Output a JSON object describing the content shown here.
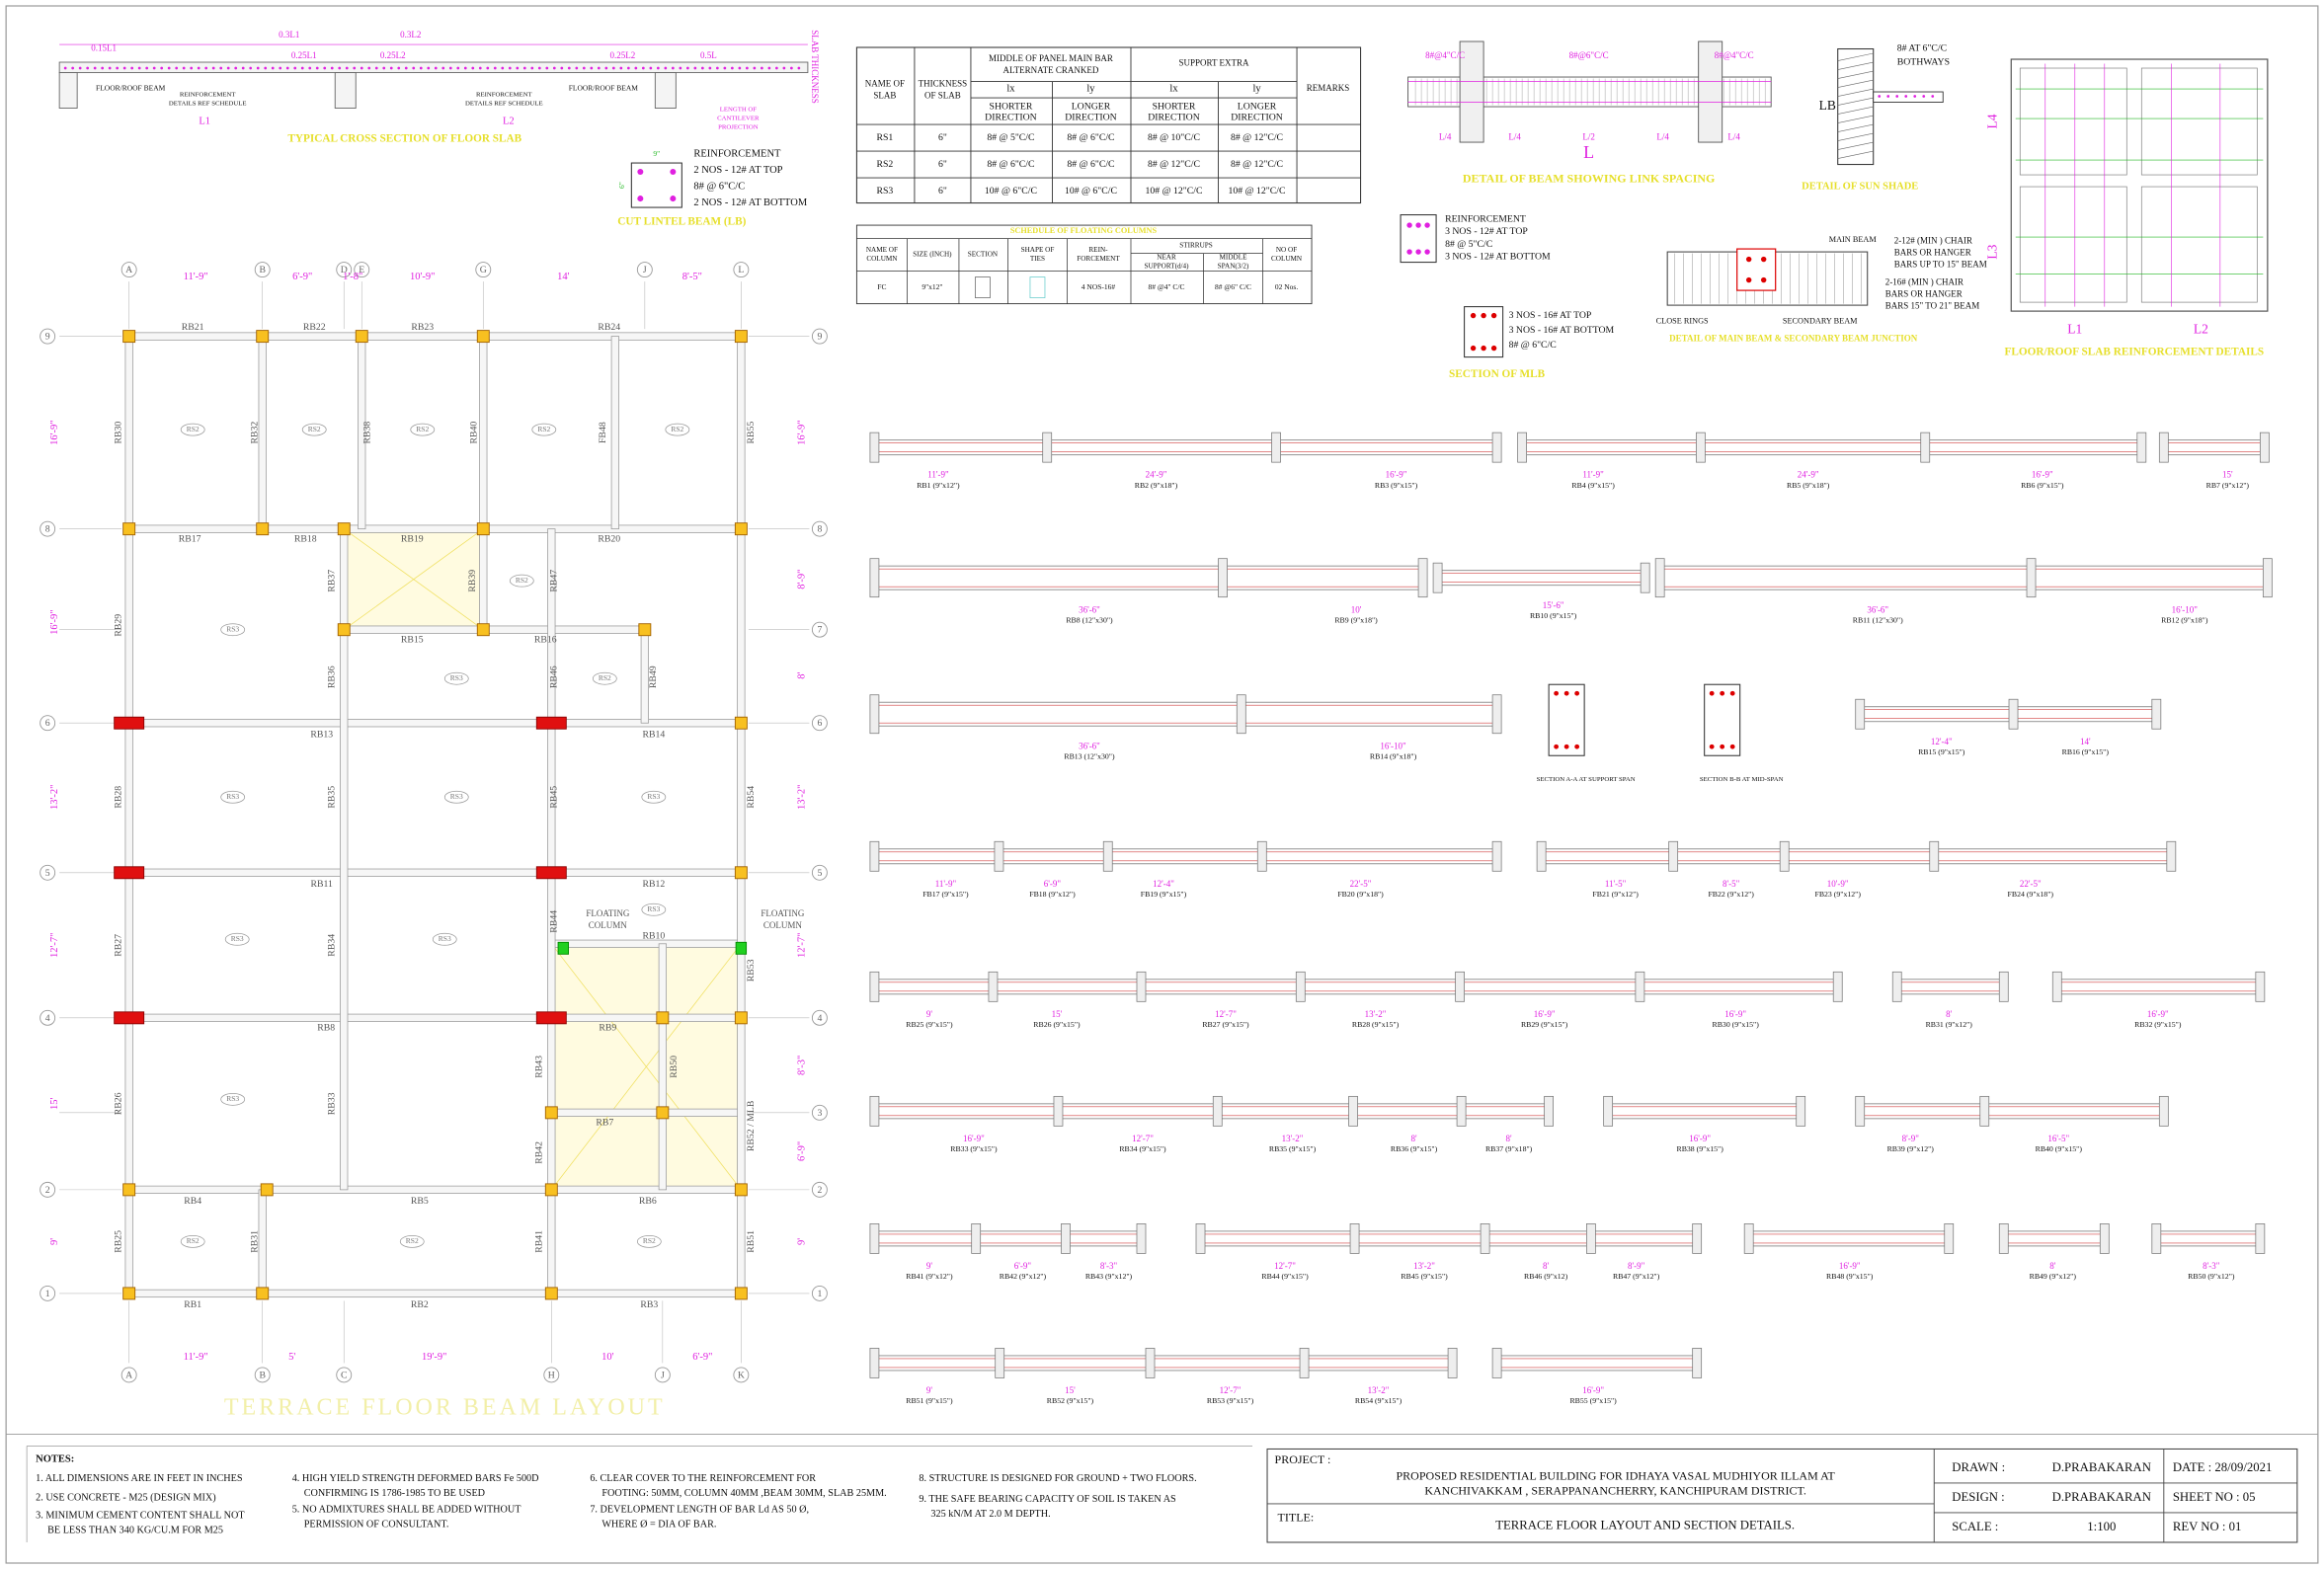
{
  "slab_section": {
    "title": "TYPICAL CROSS SECTION OF FLOOR SLAB",
    "labels": [
      "0.15L1",
      "0.3L1",
      "0.3L2",
      "0.25L1",
      "0.25L2",
      "0.25L2",
      "0.5L",
      "SLAB THICKNESS",
      "FLOOR/ROOF BEAM",
      "FLOOR/ROOF BEAM",
      "L1",
      "L2"
    ],
    "notes": [
      [
        "REINFORCEMENT",
        "DETAILS REF SCHEDULE"
      ],
      [
        "REINFORCEMENT",
        "DETAILS REF SCHEDULE"
      ],
      [
        "LENGTH OF",
        "CANTILEVER",
        "PROJECTION"
      ]
    ]
  },
  "lintel": {
    "title": "CUT LINTEL BEAM (LB)",
    "lines": [
      "REINFORCEMENT",
      "2 NOS - 12#  AT TOP",
      "8# @ 6\"C/C",
      "2 NOS - 12#  AT BOTTOM"
    ],
    "dims": [
      "9\"",
      "6\""
    ]
  },
  "slab_schedule": {
    "headers": [
      [
        "NAME OF",
        "SLAB"
      ],
      [
        "THICKNESS",
        "OF SLAB"
      ],
      [
        "MIDDLE OF PANEL MAIN BAR",
        "ALTERNATE CRANKED"
      ],
      [
        "SUPPORT EXTRA"
      ],
      [
        "REMARKS"
      ]
    ],
    "sub_headers": [
      "lx",
      "ly",
      "lx",
      "ly"
    ],
    "directions": [
      [
        "SHORTER",
        "DIRECTION"
      ],
      [
        "LONGER",
        "DIRECTION"
      ],
      [
        "SHORTER",
        "DIRECTION"
      ],
      [
        "LONGER",
        "DIRECTION"
      ]
    ],
    "rows": [
      [
        "RS1",
        "6\"",
        "8# @ 5\"C/C",
        "8# @ 6\"C/C",
        "8# @ 10\"C/C",
        "8# @ 12\"C/C"
      ],
      [
        "RS2",
        "6\"",
        "8# @ 6\"C/C",
        "8# @ 6\"C/C",
        "8# @ 12\"C/C",
        "8# @ 12\"C/C"
      ],
      [
        "RS3",
        "6\"",
        "10# @ 6\"C/C",
        "10# @ 6\"C/C",
        "10# @ 12\"C/C",
        "10# @ 12\"C/C"
      ]
    ]
  },
  "column_schedule": {
    "title": "SCHEDULE OF FLOATING COLUMNS",
    "headers": [
      [
        "NAME OF",
        "COLUMN"
      ],
      [
        "SIZE (INCH)"
      ],
      [
        "SECTION"
      ],
      [
        "SHAPE OF",
        "TIES"
      ],
      [
        "REIN-",
        "FORCEMENT"
      ],
      [
        "STIRRUPS"
      ],
      [
        "NEAR",
        "SUPPORT(d/4)"
      ],
      [
        "MIDDLE",
        "SPAN(3/2)"
      ],
      [
        "NO OF",
        "COLUMN"
      ]
    ],
    "row": [
      "FC",
      "9\"x12\"",
      "4 NOS-16#",
      "8# @4\" C/C",
      "8# @6\" C/C",
      "02 Nos."
    ]
  },
  "link_detail": {
    "title": "DETAIL OF BEAM SHOWING LINK SPACING",
    "labels": [
      "8#@4\"C/C",
      "8#@6\"C/C",
      "8#@4\"C/C",
      "L/4",
      "L/4",
      "L/2",
      "L/4",
      "L/4",
      "L"
    ]
  },
  "sun_shade": {
    "title": "DETAIL OF SUN SHADE",
    "lines": [
      "8# AT 6\"C/C",
      "BOTHWAYS"
    ],
    "label": "LB"
  },
  "mlb": {
    "lines": [
      "REINFORCEMENT",
      "3 NOS - 12#  AT TOP",
      "8# @ 5\"C/C",
      "3 NOS - 12#  AT BOTTOM"
    ],
    "lines2": [
      "3 NOS - 16#  AT TOP",
      "3 NOS - 16#  AT BOTTOM",
      "8# @ 6\"C/C"
    ],
    "title": "SECTION OF MLB"
  },
  "junction": {
    "title": "DETAIL OF MAIN BEAM & SECONDARY BEAM JUNCTION",
    "labels": [
      "MAIN BEAM",
      "CLOSE RINGS",
      "SECONDARY BEAM"
    ],
    "chair1": [
      "2-12# (MIN ) CHAIR",
      "BARS OR HANGER",
      "BARS UP TO 15\" BEAM"
    ],
    "chair2": [
      "2-16# (MIN ) CHAIR",
      "BARS OR HANGER",
      "BARS  15\" TO 21\"  BEAM"
    ]
  },
  "slab_detail": {
    "title": "FLOOR/ROOF SLAB REINFORCEMENT DETAILS",
    "labels": [
      "L1",
      "L2",
      "L3",
      "L4"
    ]
  },
  "beam_layout": {
    "title": "TERRACE  FLOOR  BEAM  LAYOUT",
    "grid_top": [
      "A",
      "B",
      "D",
      "E",
      "G",
      "J",
      "L"
    ],
    "grid_bottom": [
      "A",
      "B",
      "C",
      "H",
      "J",
      "K"
    ],
    "grid_rows": [
      "9",
      "8",
      "7",
      "6",
      "5",
      "4",
      "3",
      "2",
      "1"
    ],
    "dims_top": [
      "11'-9\"",
      "6'-9\"",
      "1'-8\"",
      "10'-9\"",
      "14'",
      "8'-5\""
    ],
    "dims_bottom": [
      "11'-9\"",
      "5'",
      "19'-9\"",
      "10'",
      "6'-9\""
    ],
    "dims_left": [
      "16'-9\"",
      "16'-9\"",
      "13'-2\"",
      "12'-7\"",
      "15'",
      "9'"
    ],
    "dims_right": [
      "16'-9\"",
      "8'-9\"",
      "8'",
      "13'-2\"",
      "12'-7\"",
      "8'-3\"",
      "6'-9\"",
      "9'"
    ],
    "beams_h": [
      "RB21",
      "RB22",
      "RB23",
      "RB24",
      "RB17",
      "RB18",
      "RB19",
      "RB20",
      "RB15",
      "RB16",
      "RB13",
      "RB14",
      "RB11",
      "RB12",
      "RB10",
      "RB8",
      "RB9",
      "RB7",
      "RB4",
      "RB5",
      "RB6",
      "RB1",
      "RB2",
      "RB3"
    ],
    "beams_v": [
      "RB30",
      "RB32",
      "RB38",
      "RB40",
      "FB48",
      "RB55",
      "RB29",
      "RB37",
      "RB39",
      "RB47",
      "RB36",
      "RB46",
      "RB49",
      "RB28",
      "RB35",
      "RB45",
      "RB54",
      "RB27",
      "RB34",
      "RB44",
      "RB53",
      "RB26",
      "RB33",
      "RB43",
      "RB50",
      "RB52 / MLB",
      "RB42",
      "RB25",
      "RB31",
      "RB41",
      "RB51"
    ],
    "slabs": [
      "RS2",
      "RS2",
      "RS2",
      "RS2",
      "RS2",
      "RS3",
      "RS2",
      "RS3",
      "RS2",
      "RS3",
      "RS3",
      "RS3",
      "RS3",
      "RS3",
      "RS3",
      "RS3",
      "RS2",
      "RS2",
      "RS2"
    ],
    "floating": [
      "FLOATING",
      "COLUMN"
    ]
  },
  "beam_details": {
    "rows": [
      [
        {
          "name": "RB1 (9\"x12\")",
          "span": "11'-9\""
        },
        {
          "name": "RB2 (9\"x18\")",
          "span": "24'-9\""
        },
        {
          "name": "RB3 (9\"x15\")",
          "span": "16'-9\""
        },
        {
          "name": "RB4 (9\"x15\")",
          "span": "11'-9\""
        },
        {
          "name": "RB5 (9\"x18\")",
          "span": "24'-9\""
        },
        {
          "name": "RB6 (9\"x15\")",
          "span": "16'-9\""
        },
        {
          "name": "RB7 (9\"x12\")",
          "span": "15'"
        }
      ],
      [
        {
          "name": "RB8 (12\"x30\")",
          "span": "36'-6\""
        },
        {
          "name": "RB9 (9\"x18\")",
          "span": "10'"
        },
        {
          "name": "RB10 (9\"x15\")",
          "span": "15'-6\""
        },
        {
          "name": "RB11 (12\"x30\")",
          "span": "36'-6\""
        },
        {
          "name": "RB12 (9\"x18\")",
          "span": "16'-10\""
        }
      ],
      [
        {
          "name": "RB13 (12\"x30\")",
          "span": "36'-6\""
        },
        {
          "name": "RB14 (9\"x18\")",
          "span": "16'-10\""
        },
        {
          "name": "RB15 (9\"x15\")",
          "span": "12'-4\""
        },
        {
          "name": "RB16 (9\"x15\")",
          "span": "14'"
        }
      ],
      [
        {
          "name": "FB17 (9\"x15\")",
          "span": "11'-9\""
        },
        {
          "name": "FB18 (9\"x12\")",
          "span": "6'-9\""
        },
        {
          "name": "FB19 (9\"x15\")",
          "span": "12'-4\""
        },
        {
          "name": "FB20 (9\"x18\")",
          "span": "22'-5\""
        },
        {
          "name": "FB21 (9\"x12\")",
          "span": "11'-5\""
        },
        {
          "name": "FB22 (9\"x12\")",
          "span": "8'-5\""
        },
        {
          "name": "FB23 (9\"x12\")",
          "span": "10'-9\""
        },
        {
          "name": "FB24 (9\"x18\")",
          "span": "22'-5\""
        }
      ],
      [
        {
          "name": "RB25 (9\"x15\")",
          "span": "9'"
        },
        {
          "name": "RB26 (9\"x15\")",
          "span": "15'"
        },
        {
          "name": "RB27 (9\"x15\")",
          "span": "12'-7\""
        },
        {
          "name": "RB28 (9\"x15\")",
          "span": "13'-2\""
        },
        {
          "name": "RB29 (9\"x15\")",
          "span": "16'-9\""
        },
        {
          "name": "RB30 (9\"x15\")",
          "span": "16'-9\""
        },
        {
          "name": "RB31 (9\"x12\")",
          "span": "8'"
        },
        {
          "name": "RB32 (9\"x15\")",
          "span": "16'-9\""
        }
      ],
      [
        {
          "name": "RB33 (9\"x15\")",
          "span": "16'-9\""
        },
        {
          "name": "RB34 (9\"x15\")",
          "span": "12'-7\""
        },
        {
          "name": "RB35 (9\"x15\")",
          "span": "13'-2\""
        },
        {
          "name": "RB36 (9\"x15\")",
          "span": "8'"
        },
        {
          "name": "RB37 (9\"x18\")",
          "span": "8'"
        },
        {
          "name": "RB38 (9\"x15\")",
          "span": "16'-9\""
        },
        {
          "name": "RB39 (9\"x12\")",
          "span": "8'-9\""
        },
        {
          "name": "RB40 (9\"x15\")",
          "span": "16'-5\""
        }
      ],
      [
        {
          "name": "RB41 (9\"x12\")",
          "span": "9'"
        },
        {
          "name": "RB42 (9\"x12\")",
          "span": "6'-9\""
        },
        {
          "name": "RB43 (9\"x12\")",
          "span": "8'-3\""
        },
        {
          "name": "RB44 (9\"x15\")",
          "span": "12'-7\""
        },
        {
          "name": "RB45 (9\"x15\")",
          "span": "13'-2\""
        },
        {
          "name": "RB46 (9\"x12)",
          "span": "8'"
        },
        {
          "name": "RB47 (9\"x12\")",
          "span": "8'-9\""
        },
        {
          "name": "RB48 (9\"x15\")",
          "span": "16'-9\""
        },
        {
          "name": "RB49 (9\"x12\")",
          "span": "8'"
        },
        {
          "name": "RB50 (9\"x12\")",
          "span": "8'-3\""
        }
      ],
      [
        {
          "name": "RB51 (9\"x15\")",
          "span": "9'"
        },
        {
          "name": "RB52 (9\"x15\")",
          "span": "15'"
        },
        {
          "name": "RB53 (9\"x15\")",
          "span": "12'-7\""
        },
        {
          "name": "RB54 (9\"x15\")",
          "span": "13'-2\""
        },
        {
          "name": "RB55 (9\"x15\")",
          "span": "16'-9\""
        }
      ]
    ],
    "sections": [
      "SECTION A-A  AT SUPPORT SPAN",
      "SECTION B-B  AT MID-SPAN"
    ]
  },
  "notes": {
    "title": "NOTES:",
    "items": [
      [
        "1. ALL DIMENSIONS ARE IN  FEET IN INCHES"
      ],
      [
        "2. USE CONCRETE - M25 (DESIGN MIX)"
      ],
      [
        "3. MINIMUM CEMENT CONTENT SHALL NOT",
        "BE LESS THAN 340 KG/CU.M FOR M25"
      ],
      [
        "4. HIGH YIELD STRENGTH DEFORMED BARS Fe 500D",
        "CONFIRMING IS 1786-1985 TO BE USED"
      ],
      [
        "5. NO ADMIXTURES SHALL BE ADDED WITHOUT",
        "PERMISSION OF CONSULTANT."
      ],
      [
        "6. CLEAR COVER TO THE REINFORCEMENT FOR",
        "FOOTING: 50MM, COLUMN 40MM ,BEAM 30MM, SLAB 25MM."
      ],
      [
        "7.  DEVELOPMENT LENGTH OF BAR Ld AS 50 Ø,",
        "WHERE Ø = DIA OF BAR."
      ],
      [
        "8. STRUCTURE IS DESIGNED FOR GROUND + TWO FLOORS."
      ],
      [
        "9. THE SAFE BEARING CAPACITY OF SOIL IS TAKEN AS",
        "325 kN/M AT 2.0 M DEPTH."
      ]
    ]
  },
  "title_block": {
    "project_label": "PROJECT :",
    "project": [
      "PROPOSED RESIDENTIAL BUILDING FOR IDHAYA VASAL MUDHIYOR ILLAM  AT",
      "KANCHIVAKKAM , SERAPPANANCHERRY, KANCHIPURAM DISTRICT."
    ],
    "title_label": "TITLE:",
    "title": "TERRACE FLOOR LAYOUT AND SECTION DETAILS.",
    "fields": [
      [
        "DRAWN :",
        "D.PRABAKARAN",
        "DATE : 28/09/2021"
      ],
      [
        "DESIGN :",
        "D.PRABAKARAN",
        "SHEET NO : 05"
      ],
      [
        "SCALE :",
        "1:100",
        "REV NO  : 01"
      ]
    ]
  }
}
